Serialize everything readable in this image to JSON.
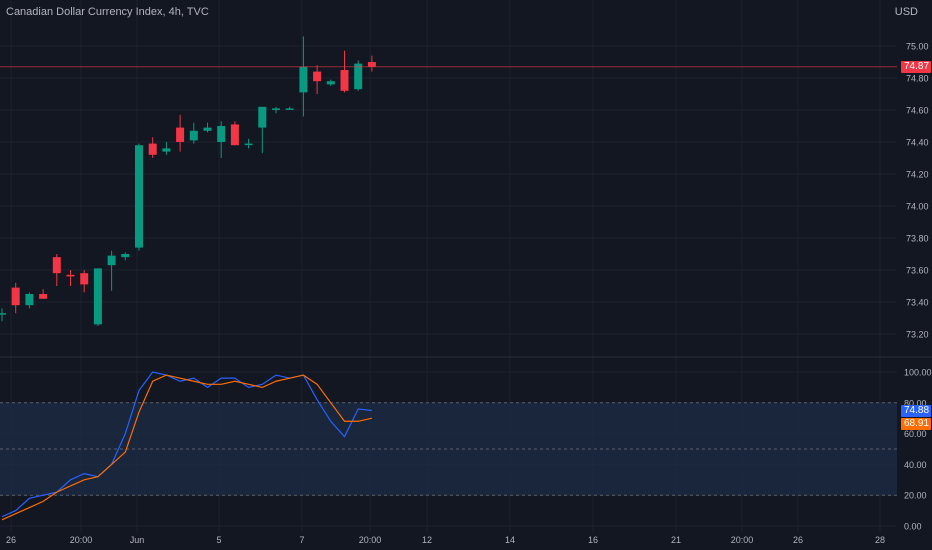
{
  "header": {
    "symbol_title": "Canadian Dollar Currency Index, 4h, TVC",
    "currency": "USD"
  },
  "colors": {
    "background": "#131722",
    "grid": "#1e222d",
    "up": "#089981",
    "down": "#f23645",
    "stoch_k": "#2962ff",
    "stoch_d": "#ff6d00",
    "band_fill": "#1b2a44",
    "axis_text": "#b2b5be"
  },
  "chart_data": [
    {
      "type": "candlestick",
      "timeframe": "4h",
      "y_axis_ticks": [
        "75.00",
        "74.80",
        "74.60",
        "74.40",
        "74.20",
        "74.00",
        "73.80",
        "73.60",
        "73.40",
        "73.20"
      ],
      "ylim": [
        73.1,
        75.1
      ],
      "last_price": 74.87,
      "last_price_label": "74.87",
      "x_tick_labels": [
        "26",
        "20:00",
        "Jun",
        "5",
        "7",
        "20:00",
        "12",
        "14",
        "16",
        "21",
        "20:00",
        "26",
        "28"
      ],
      "candles": [
        {
          "o": 73.33,
          "h": 73.36,
          "l": 73.28,
          "c": 73.33
        },
        {
          "o": 73.49,
          "h": 73.52,
          "l": 73.33,
          "c": 73.38
        },
        {
          "o": 73.38,
          "h": 73.46,
          "l": 73.36,
          "c": 73.45
        },
        {
          "o": 73.45,
          "h": 73.48,
          "l": 73.42,
          "c": 73.42
        },
        {
          "o": 73.68,
          "h": 73.7,
          "l": 73.5,
          "c": 73.58
        },
        {
          "o": 73.57,
          "h": 73.6,
          "l": 73.5,
          "c": 73.56
        },
        {
          "o": 73.58,
          "h": 73.6,
          "l": 73.46,
          "c": 73.51
        },
        {
          "o": 73.26,
          "h": 73.61,
          "l": 73.25,
          "c": 73.61
        },
        {
          "o": 73.63,
          "h": 73.72,
          "l": 73.47,
          "c": 73.69
        },
        {
          "o": 73.68,
          "h": 73.71,
          "l": 73.66,
          "c": 73.7
        },
        {
          "o": 73.74,
          "h": 74.39,
          "l": 73.72,
          "c": 74.38
        },
        {
          "o": 74.39,
          "h": 74.43,
          "l": 74.3,
          "c": 74.32
        },
        {
          "o": 74.34,
          "h": 74.4,
          "l": 74.32,
          "c": 74.36
        },
        {
          "o": 74.49,
          "h": 74.57,
          "l": 74.34,
          "c": 74.4
        },
        {
          "o": 74.41,
          "h": 74.52,
          "l": 74.39,
          "c": 74.47
        },
        {
          "o": 74.47,
          "h": 74.52,
          "l": 74.46,
          "c": 74.49
        },
        {
          "o": 74.4,
          "h": 74.53,
          "l": 74.3,
          "c": 74.5
        },
        {
          "o": 74.51,
          "h": 74.53,
          "l": 74.38,
          "c": 74.38
        },
        {
          "o": 74.39,
          "h": 74.42,
          "l": 74.36,
          "c": 74.39
        },
        {
          "o": 74.49,
          "h": 74.61,
          "l": 74.33,
          "c": 74.62
        },
        {
          "o": 74.6,
          "h": 74.62,
          "l": 74.58,
          "c": 74.61
        },
        {
          "o": 74.61,
          "h": 74.62,
          "l": 74.6,
          "c": 74.61
        },
        {
          "o": 74.71,
          "h": 75.06,
          "l": 74.56,
          "c": 74.87
        },
        {
          "o": 74.84,
          "h": 74.88,
          "l": 74.7,
          "c": 74.78
        },
        {
          "o": 74.76,
          "h": 74.79,
          "l": 74.75,
          "c": 74.78
        },
        {
          "o": 74.85,
          "h": 74.97,
          "l": 74.71,
          "c": 74.72
        },
        {
          "o": 74.73,
          "h": 74.91,
          "l": 74.72,
          "c": 74.89
        },
        {
          "o": 74.9,
          "h": 74.94,
          "l": 74.84,
          "c": 74.87
        }
      ]
    },
    {
      "type": "line",
      "indicator": "Stochastic",
      "ylim": [
        0,
        105
      ],
      "y_axis_ticks": [
        "100.00",
        "80.00",
        "60.00",
        "40.00",
        "20.00",
        "0.00"
      ],
      "band": [
        20,
        80
      ],
      "mid_line": 50,
      "series": [
        {
          "key": "k",
          "last_label": "74.88",
          "values": [
            6,
            10,
            18,
            20,
            22,
            30,
            34,
            32,
            40,
            60,
            88,
            100,
            98,
            94,
            96,
            90,
            96,
            96,
            90,
            92,
            98,
            96,
            98,
            82,
            68,
            58,
            76,
            75
          ]
        },
        {
          "key": "d",
          "last_label": "68.91",
          "values": [
            4,
            8,
            12,
            16,
            22,
            26,
            30,
            32,
            40,
            48,
            74,
            94,
            98,
            96,
            94,
            92,
            92,
            94,
            92,
            90,
            94,
            96,
            98,
            92,
            80,
            68,
            68,
            70
          ]
        }
      ]
    }
  ]
}
